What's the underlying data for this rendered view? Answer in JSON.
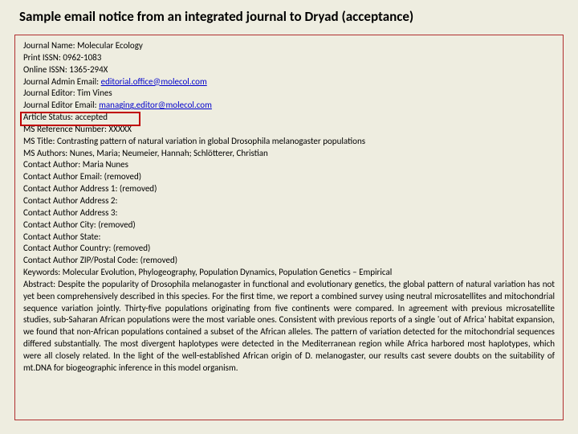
{
  "title": "Sample email notice from an integrated journal to Dryad (acceptance)",
  "fields": {
    "journal_name_label": "Journal Name:",
    "journal_name": "Molecular Ecology",
    "print_issn_label": "Print ISSN:",
    "print_issn": "0962-1083",
    "online_issn_label": "Online ISSN:",
    "online_issn": "1365-294X",
    "admin_email_label": "Journal Admin Email:",
    "admin_email": "editorial.office@molecol.com",
    "editor_label": "Journal Editor:",
    "editor": "Tim Vines",
    "editor_email_label": "Journal Editor Email:",
    "editor_email": "managing.editor@molecol.com",
    "status_label": "Article Status:",
    "status": "accepted",
    "ms_ref_label": "MS Reference Number:",
    "ms_ref": "XXXXX",
    "ms_title_label": "MS Title:",
    "ms_title": "Contrasting pattern of natural variation in global Drosophila melanogaster populations",
    "ms_authors_label": "MS Authors:",
    "ms_authors": "Nunes, Maria; Neumeier, Hannah; Schlötterer, Christian",
    "contact_author_label": "Contact Author:",
    "contact_author": "Maria Nunes",
    "contact_email_label": "Contact Author Email:",
    "contact_email": "(removed)",
    "addr1_label": "Contact Author Address 1:",
    "addr1": "(removed)",
    "addr2_label": "Contact Author Address 2:",
    "addr2": "",
    "addr3_label": "Contact Author Address 3:",
    "addr3": "",
    "city_label": "Contact Author City:",
    "city": "(removed)",
    "state_label": "Contact Author State:",
    "state": "",
    "country_label": "Contact Author Country:",
    "country": "(removed)",
    "zip_label": "Contact Author ZIP/Postal Code:",
    "zip": "(removed)",
    "keywords_label": "Keywords:",
    "keywords": "Molecular Evolution, Phylogeography, Population Dynamics, Population Genetics – Empirical",
    "abstract_label": "Abstract:",
    "abstract": "Despite the popularity of Drosophila melanogaster in functional and evolutionary genetics, the global pattern of natural variation has not yet been comprehensively described in this species. For the first time, we report a combined survey using neutral microsatellites and mitochondrial sequence variation jointly. Thirty-five populations originating from five continents were compared. In agreement with previous microsatellite studies, sub-Saharan African populations were the most variable ones. Consistent with previous reports of a single 'out of Africa' habitat expansion, we found that non-African populations contained a subset of the African alleles. The pattern of variation detected for the mitochondrial sequences differed substantially. The most divergent haplotypes were detected in the Mediterranean region while Africa harbored most haplotypes, which were all closely related. In the light of the well-established African origin of D. melanogaster, our results cast severe doubts on the suitability of mt.DNA for biogeographic inference in this model organism."
  },
  "colors": {
    "background": "#eeede0",
    "border": "#b03030",
    "highlight": "#c00000",
    "link": "#0000cc"
  }
}
